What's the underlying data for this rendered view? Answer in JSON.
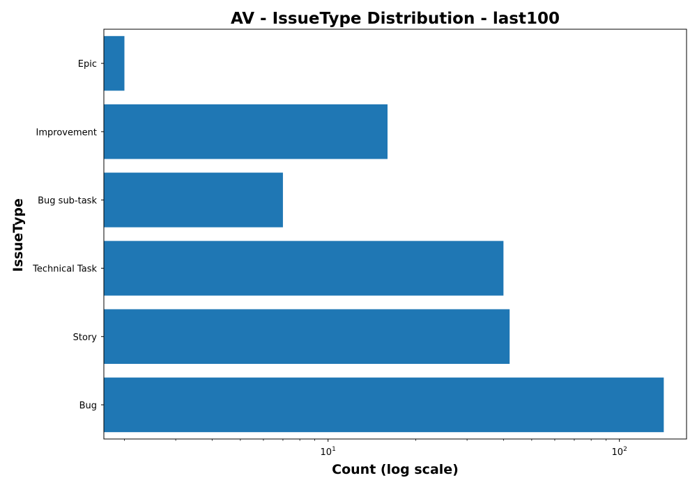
{
  "chart_data": {
    "type": "bar",
    "orientation": "horizontal",
    "title": "AV - IssueType Distribution - last100",
    "xlabel": "Count (log scale)",
    "ylabel": "IssueType",
    "x_scale": "log",
    "xlim": [
      1.7,
      170
    ],
    "categories": [
      "Bug",
      "Story",
      "Technical Task",
      "Bug sub-task",
      "Improvement",
      "Epic"
    ],
    "values": [
      142,
      42,
      40,
      7,
      16,
      2
    ],
    "x_ticks": [
      {
        "base": "10",
        "exp": "1",
        "value": 10
      },
      {
        "base": "10",
        "exp": "2",
        "value": 100
      }
    ],
    "bar_color": "#1f77b4",
    "grid": false,
    "legend": "none"
  }
}
